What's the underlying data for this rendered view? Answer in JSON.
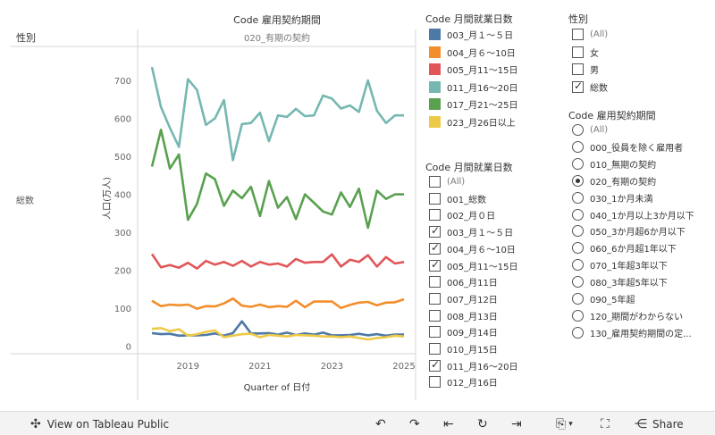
{
  "chart": {
    "title": "Code 雇用契約期間",
    "row_header": "性別",
    "column_header": "020_有期の契約",
    "row_label": "総数",
    "ylabel": "人口(万人)",
    "xlabel": "Quarter of 日付"
  },
  "chart_data": {
    "type": "line",
    "x": [
      "2018 Q1",
      "2018 Q2",
      "2018 Q3",
      "2018 Q4",
      "2019 Q1",
      "2019 Q2",
      "2019 Q3",
      "2019 Q4",
      "2020 Q1",
      "2020 Q2",
      "2020 Q3",
      "2020 Q4",
      "2021 Q1",
      "2021 Q2",
      "2021 Q3",
      "2021 Q4",
      "2022 Q1",
      "2022 Q2",
      "2022 Q3",
      "2022 Q4",
      "2023 Q1",
      "2023 Q2",
      "2023 Q3",
      "2023 Q4",
      "2024 Q1",
      "2024 Q2",
      "2024 Q3",
      "2024 Q4",
      "2025 Q1"
    ],
    "x_ticks": [
      "2019",
      "2021",
      "2023",
      "2025"
    ],
    "y_ticks": [
      0,
      100,
      200,
      300,
      400,
      500,
      600,
      700
    ],
    "ylim": [
      -10,
      780
    ],
    "grid": false,
    "series": [
      {
        "name": "003_月１～５日",
        "color": "#4e79a7",
        "values": [
          35,
          32,
          33,
          28,
          29,
          29,
          30,
          34,
          28,
          35,
          66,
          34,
          34,
          35,
          31,
          36,
          30,
          34,
          31,
          36,
          29,
          29,
          30,
          33,
          29,
          32,
          28,
          31,
          31
        ]
      },
      {
        "name": "004_月６～10日",
        "color": "#f28e2b",
        "values": [
          120,
          106,
          110,
          108,
          110,
          99,
          106,
          105,
          113,
          126,
          107,
          104,
          110,
          103,
          106,
          104,
          120,
          103,
          118,
          118,
          118,
          101,
          109,
          115,
          117,
          108,
          115,
          116,
          124
        ]
      },
      {
        "name": "005_月11～15日",
        "color": "#e15759",
        "values": [
          243,
          208,
          214,
          207,
          220,
          205,
          225,
          215,
          222,
          212,
          225,
          210,
          222,
          215,
          218,
          210,
          230,
          220,
          222,
          222,
          242,
          210,
          228,
          222,
          240,
          210,
          235,
          218,
          222
        ]
      },
      {
        "name": "011_月16～20日",
        "color": "#76b7b2",
        "values": [
          735,
          630,
          575,
          525,
          703,
          675,
          583,
          600,
          648,
          490,
          585,
          588,
          615,
          540,
          608,
          604,
          625,
          606,
          608,
          660,
          652,
          626,
          634,
          617,
          700,
          620,
          588,
          608,
          608
        ]
      },
      {
        "name": "017_月21～25日",
        "color": "#59a14f",
        "values": [
          473,
          570,
          468,
          505,
          333,
          375,
          455,
          440,
          370,
          410,
          390,
          420,
          343,
          435,
          365,
          393,
          335,
          400,
          378,
          355,
          347,
          405,
          367,
          415,
          312,
          410,
          388,
          400,
          400
        ]
      },
      {
        "name": "023_月26日以上",
        "color": "#edc948",
        "values": [
          46,
          48,
          40,
          45,
          28,
          32,
          38,
          42,
          24,
          28,
          32,
          33,
          24,
          30,
          28,
          26,
          30,
          29,
          28,
          26,
          26,
          24,
          26,
          22,
          18,
          22,
          24,
          28,
          26
        ]
      }
    ]
  },
  "legend": {
    "title": "Code 月間就業日数",
    "items": [
      {
        "label": "003_月１～５日",
        "color": "#4e79a7"
      },
      {
        "label": "004_月６～10日",
        "color": "#f28e2b"
      },
      {
        "label": "005_月11～15日",
        "color": "#e15759"
      },
      {
        "label": "011_月16～20日",
        "color": "#76b7b2"
      },
      {
        "label": "017_月21～25日",
        "color": "#59a14f"
      },
      {
        "label": "023_月26日以上",
        "color": "#edc948"
      }
    ]
  },
  "filter_days": {
    "title": "Code 月間就業日数",
    "items": [
      {
        "label": "(All)",
        "checked": false,
        "muted": true
      },
      {
        "label": "001_総数",
        "checked": false
      },
      {
        "label": "002_月０日",
        "checked": false
      },
      {
        "label": "003_月１～５日",
        "checked": true
      },
      {
        "label": "004_月６～10日",
        "checked": true
      },
      {
        "label": "005_月11～15日",
        "checked": true
      },
      {
        "label": "006_月11日",
        "checked": false
      },
      {
        "label": "007_月12日",
        "checked": false
      },
      {
        "label": "008_月13日",
        "checked": false
      },
      {
        "label": "009_月14日",
        "checked": false
      },
      {
        "label": "010_月15日",
        "checked": false
      },
      {
        "label": "011_月16～20日",
        "checked": true
      },
      {
        "label": "012_月16日",
        "checked": false
      }
    ]
  },
  "filter_sex": {
    "title": "性別",
    "items": [
      {
        "label": "(All)",
        "checked": false,
        "muted": true
      },
      {
        "label": "女",
        "checked": false
      },
      {
        "label": "男",
        "checked": false
      },
      {
        "label": "総数",
        "checked": true
      }
    ]
  },
  "filter_contract": {
    "title": "Code 雇用契約期間",
    "items": [
      {
        "label": "(All)",
        "selected": false,
        "muted": true
      },
      {
        "label": "000_役員を除く雇用者",
        "selected": false
      },
      {
        "label": "010_無期の契約",
        "selected": false
      },
      {
        "label": "020_有期の契約",
        "selected": true
      },
      {
        "label": "030_1か月未満",
        "selected": false
      },
      {
        "label": "040_1か月以上3か月以下",
        "selected": false
      },
      {
        "label": "050_3か月超6か月以下",
        "selected": false
      },
      {
        "label": "060_6か月超1年以下",
        "selected": false
      },
      {
        "label": "070_1年超3年以下",
        "selected": false
      },
      {
        "label": "080_3年超5年以下",
        "selected": false
      },
      {
        "label": "090_5年超",
        "selected": false
      },
      {
        "label": "120_期間がわからない",
        "selected": false
      },
      {
        "label": "130_雇用契約期間の定..."
      }
    ]
  },
  "toolbar": {
    "view_label": "View on Tableau Public",
    "share_label": "Share"
  }
}
